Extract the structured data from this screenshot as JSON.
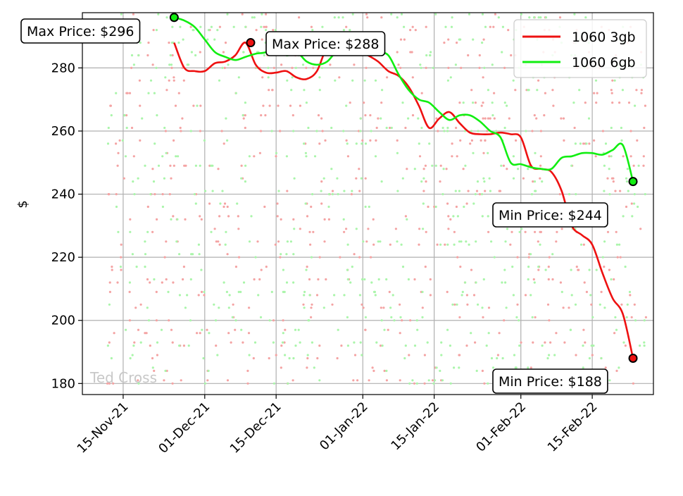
{
  "chart_data": {
    "type": "line",
    "title": "",
    "xlabel": "",
    "ylabel": "$",
    "ylim": [
      176.5,
      297.5
    ],
    "xlim": [
      "2021-11-07",
      "2022-02-27"
    ],
    "grid": true,
    "legend_placement": "upper-right",
    "x_ticks": [
      "15-Nov-21",
      "01-Dec-21",
      "15-Dec-21",
      "01-Jan-22",
      "15-Jan-22",
      "01-Feb-22",
      "15-Feb-22"
    ],
    "x_tick_dates": [
      "2021-11-15",
      "2021-12-01",
      "2021-12-15",
      "2022-01-01",
      "2022-01-15",
      "2022-02-01",
      "2022-02-15"
    ],
    "y_ticks": [
      180,
      200,
      220,
      240,
      260,
      280
    ],
    "series": [
      {
        "name": "1060 3gb",
        "color": "#ee1111",
        "scatter_color": "#f4a3a3",
        "x": [
          "2021-11-25",
          "2021-11-27",
          "2021-11-29",
          "2021-12-01",
          "2021-12-03",
          "2021-12-05",
          "2021-12-07",
          "2021-12-09",
          "2021-12-11",
          "2021-12-13",
          "2021-12-15",
          "2021-12-17",
          "2021-12-19",
          "2021-12-21",
          "2021-12-23",
          "2021-12-25",
          "2021-12-27",
          "2021-12-29",
          "2021-12-31",
          "2022-01-02",
          "2022-01-04",
          "2022-01-06",
          "2022-01-08",
          "2022-01-10",
          "2022-01-12",
          "2022-01-14",
          "2022-01-16",
          "2022-01-18",
          "2022-01-20",
          "2022-01-22",
          "2022-01-24",
          "2022-01-26",
          "2022-01-28",
          "2022-01-30",
          "2022-02-01",
          "2022-02-03",
          "2022-02-05",
          "2022-02-07",
          "2022-02-09",
          "2022-02-11",
          "2022-02-13",
          "2022-02-15",
          "2022-02-17",
          "2022-02-19",
          "2022-02-21",
          "2022-02-23"
        ],
        "values": [
          288,
          280,
          279,
          279,
          281.5,
          282,
          284,
          288,
          281,
          278.5,
          278.5,
          279,
          277,
          276.5,
          279,
          286.5,
          286.5,
          286.5,
          285.5,
          284,
          282,
          279,
          277.5,
          274,
          268,
          261,
          264,
          266,
          262.5,
          259.5,
          259,
          259,
          259.5,
          259,
          258,
          249,
          248,
          247,
          241,
          230,
          227,
          224,
          215,
          207,
          202,
          188
        ],
        "max_label": "Max Price: $288",
        "max_point": {
          "x": "2021-12-10",
          "y": 288
        },
        "min_label": "Min Price: $188",
        "min_point": {
          "x": "2022-02-23",
          "y": 188
        }
      },
      {
        "name": "1060 6gb",
        "color": "#11ee11",
        "scatter_color": "#aaf5aa",
        "x": [
          "2021-11-25",
          "2021-11-27",
          "2021-11-29",
          "2021-12-01",
          "2021-12-03",
          "2021-12-05",
          "2021-12-07",
          "2021-12-09",
          "2021-12-11",
          "2021-12-13",
          "2021-12-15",
          "2021-12-17",
          "2021-12-19",
          "2021-12-21",
          "2021-12-23",
          "2021-12-25",
          "2021-12-27",
          "2021-12-29",
          "2021-12-31",
          "2022-01-02",
          "2022-01-04",
          "2022-01-06",
          "2022-01-08",
          "2022-01-10",
          "2022-01-12",
          "2022-01-14",
          "2022-01-16",
          "2022-01-18",
          "2022-01-20",
          "2022-01-22",
          "2022-01-24",
          "2022-01-26",
          "2022-01-28",
          "2022-01-30",
          "2022-02-01",
          "2022-02-03",
          "2022-02-05",
          "2022-02-07",
          "2022-02-09",
          "2022-02-11",
          "2022-02-13",
          "2022-02-15",
          "2022-02-17",
          "2022-02-19",
          "2022-02-21",
          "2022-02-23"
        ],
        "values": [
          296,
          295,
          293,
          289,
          285,
          283.5,
          282.5,
          283.5,
          284.5,
          285,
          287,
          284,
          285,
          282,
          281,
          282,
          285.5,
          286.5,
          286,
          285.5,
          285,
          284,
          278,
          273,
          270,
          269,
          266,
          263.5,
          265,
          265,
          263,
          260,
          258,
          250,
          249.5,
          248.5,
          248,
          248,
          251.5,
          252,
          253,
          253,
          252.5,
          254,
          255.5,
          244
        ],
        "max_label": "Max Price: $296",
        "max_point": {
          "x": "2021-11-25",
          "y": 296
        },
        "min_label": "Min Price: $244",
        "min_point": {
          "x": "2022-02-23",
          "y": 244
        }
      }
    ],
    "watermark": "Ted Cross"
  }
}
